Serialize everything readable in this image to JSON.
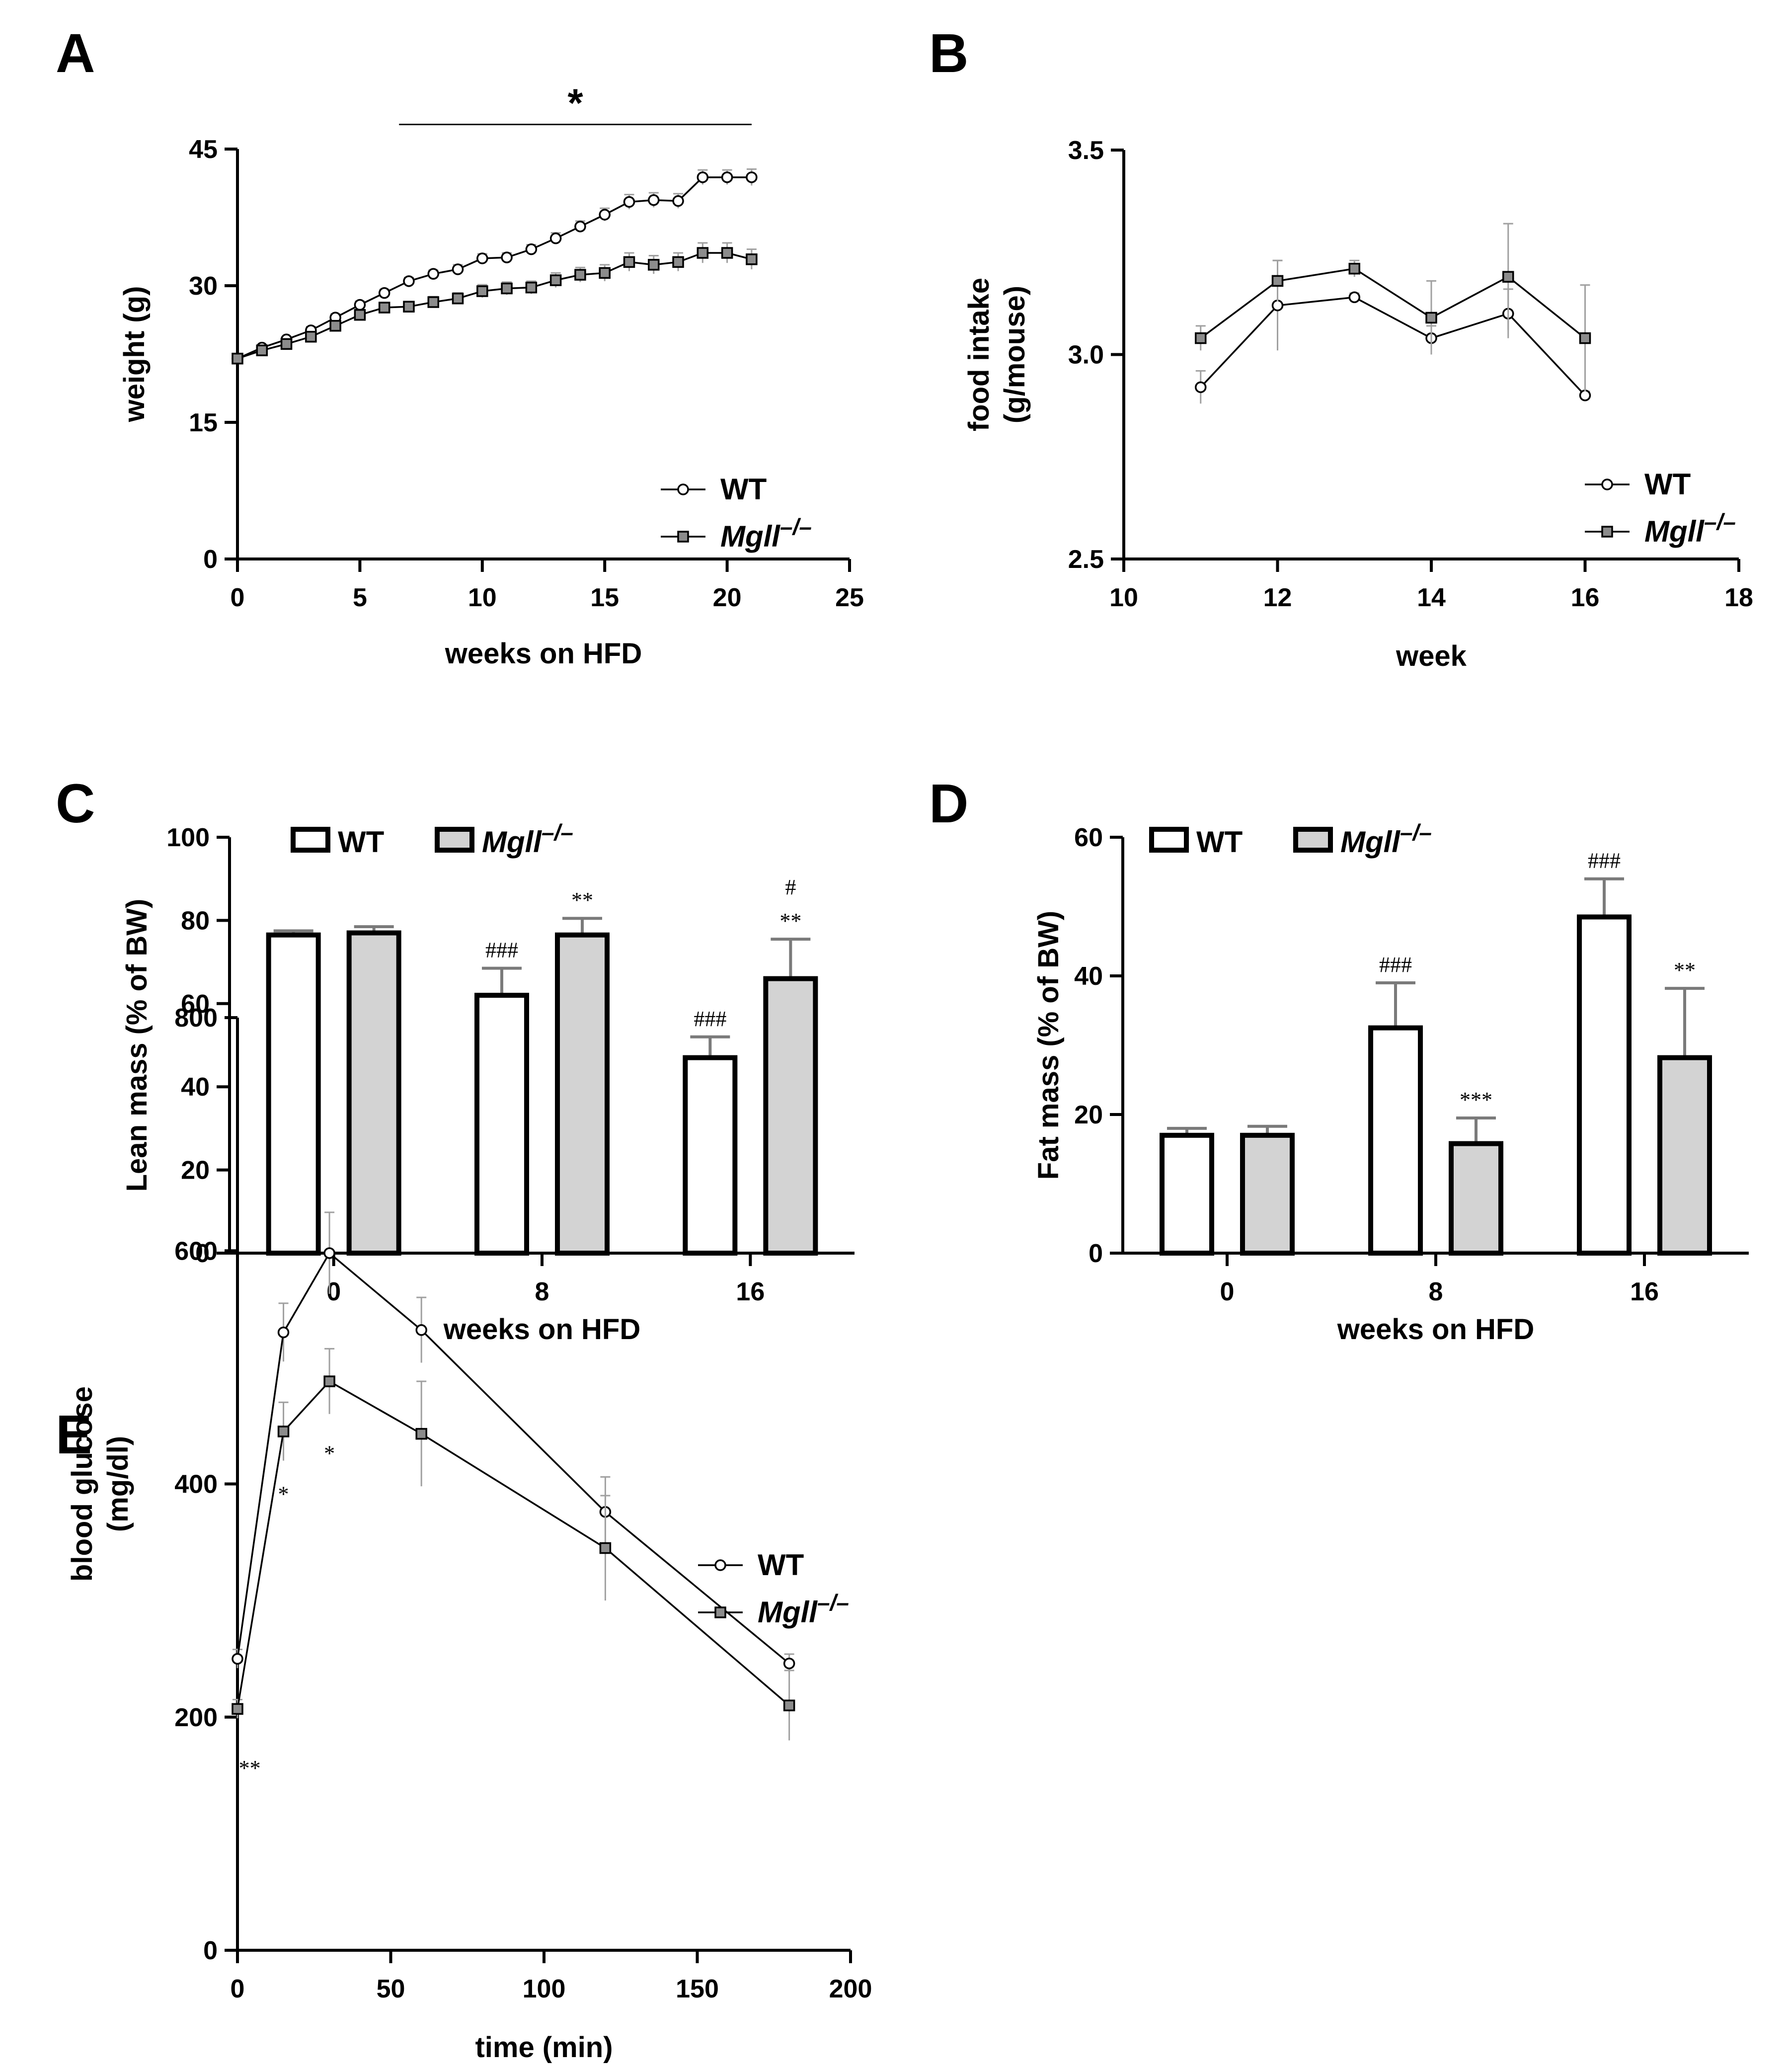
{
  "chart_data": [
    {
      "id": "A",
      "panel_label": "A",
      "type": "line",
      "xlabel": "weeks on HFD",
      "ylabel": "weight (g)",
      "xlim": [
        0,
        25
      ],
      "ylim": [
        0,
        45
      ],
      "xticks": [
        "0",
        "5",
        "10",
        "15",
        "20",
        "25"
      ],
      "yticks": [
        "0",
        "15",
        "30",
        "45"
      ],
      "x": [
        0,
        1,
        2,
        3,
        4,
        5,
        6,
        7,
        8,
        9,
        10,
        11,
        12,
        13,
        14,
        15,
        16,
        17,
        18,
        19,
        20,
        21
      ],
      "series": [
        {
          "name": "WT",
          "marker": "circle",
          "values": [
            22,
            23.2,
            24.1,
            25.1,
            26.5,
            27.9,
            29.2,
            30.5,
            31.3,
            31.8,
            33,
            33.1,
            34,
            35.2,
            36.5,
            37.8,
            39.2,
            39.4,
            39.3,
            41.9,
            41.9,
            41.9
          ],
          "err": [
            0,
            0.3,
            0.3,
            0.4,
            0.4,
            0.4,
            0.4,
            0.4,
            0.4,
            0.5,
            0.5,
            0.5,
            0.5,
            0.6,
            0.6,
            0.7,
            0.8,
            0.8,
            0.8,
            0.8,
            0.8,
            0.9
          ]
        },
        {
          "name": "Mgll⁻/⁻",
          "marker": "square",
          "values": [
            22,
            22.9,
            23.6,
            24.4,
            25.6,
            26.8,
            27.6,
            27.7,
            28.2,
            28.6,
            29.4,
            29.7,
            29.8,
            30.6,
            31.2,
            31.4,
            32.6,
            32.3,
            32.6,
            33.6,
            33.6,
            32.9
          ],
          "err": [
            0,
            0.3,
            0.3,
            0.4,
            0.4,
            0.5,
            0.5,
            0.5,
            0.6,
            0.6,
            0.7,
            0.7,
            0.7,
            0.8,
            0.8,
            0.9,
            1,
            1,
            1,
            1.1,
            1.1,
            1.1
          ]
        }
      ],
      "annotations": [
        {
          "text": "*",
          "x_from": 6.6,
          "x_to": 21,
          "y": 47.7
        }
      ],
      "legend": [
        "WT",
        "Mgll⁻/⁻"
      ],
      "legend_position": "bottom-right"
    },
    {
      "id": "B",
      "panel_label": "B",
      "type": "line",
      "xlabel": "week",
      "ylabel_lines": [
        "food intake",
        "(g/mouse)"
      ],
      "xlim": [
        10,
        18
      ],
      "ylim": [
        2.5,
        3.5
      ],
      "xticks": [
        "10",
        "12",
        "14",
        "16",
        "18"
      ],
      "yticks": [
        "2.5",
        "3.0",
        "3.5"
      ],
      "x": [
        11,
        12,
        13,
        14,
        15,
        16
      ],
      "series": [
        {
          "name": "WT",
          "marker": "circle",
          "values": [
            2.92,
            3.12,
            3.14,
            3.04,
            3.1,
            2.9
          ],
          "err": [
            0.04,
            0.11,
            0.01,
            0.03,
            0.06,
            0.01
          ]
        },
        {
          "name": "Mgll⁻/⁻",
          "marker": "square",
          "values": [
            3.04,
            3.18,
            3.21,
            3.09,
            3.19,
            3.04
          ],
          "err": [
            0.03,
            0.05,
            0.02,
            0.09,
            0.13,
            0.13
          ]
        }
      ],
      "legend": [
        "WT",
        "Mgll⁻/⁻"
      ],
      "legend_position": "bottom-right"
    },
    {
      "id": "C",
      "panel_label": "C",
      "type": "bar",
      "xlabel": "weeks on HFD",
      "ylabel": "Lean mass (% of BW)",
      "ylim": [
        0,
        100
      ],
      "yticks": [
        "0",
        "20",
        "40",
        "60",
        "80",
        "100"
      ],
      "categories": [
        "0",
        "8",
        "16"
      ],
      "series": [
        {
          "name": "WT",
          "values": [
            76.5,
            62,
            47
          ],
          "err": [
            1,
            6.5,
            5
          ],
          "annotations": [
            "",
            "###",
            "###"
          ]
        },
        {
          "name": "Mgll⁻/⁻",
          "values": [
            77,
            76.5,
            66
          ],
          "err": [
            1.5,
            4,
            9.5
          ],
          "annotations": [
            "",
            "**",
            "**"
          ],
          "annotations_top": [
            "",
            "",
            "#"
          ]
        }
      ],
      "legend": [
        "WT",
        "Mgll⁻/⁻"
      ],
      "legend_position": "top"
    },
    {
      "id": "D",
      "panel_label": "D",
      "type": "bar",
      "xlabel": "weeks on HFD",
      "ylabel": "Fat mass (% of BW)",
      "ylim": [
        0,
        60
      ],
      "yticks": [
        "0",
        "20",
        "40",
        "60"
      ],
      "categories": [
        "0",
        "8",
        "16"
      ],
      "series": [
        {
          "name": "WT",
          "values": [
            17,
            32.5,
            48.5
          ],
          "err": [
            1,
            6.5,
            5.5
          ],
          "annotations": [
            "",
            "###",
            "###"
          ]
        },
        {
          "name": "Mgll⁻/⁻",
          "values": [
            17,
            15.8,
            28.2
          ],
          "err": [
            1.3,
            3.7,
            10
          ],
          "annotations": [
            "",
            "***",
            "**"
          ]
        }
      ],
      "legend": [
        "WT",
        "Mgll⁻/⁻"
      ],
      "legend_position": "top"
    },
    {
      "id": "E",
      "panel_label": "E",
      "type": "line",
      "xlabel": "time (min)",
      "ylabel_lines": [
        "blood glucose",
        "(mg/dl)"
      ],
      "xlim": [
        0,
        200
      ],
      "ylim": [
        0,
        800
      ],
      "xticks": [
        "0",
        "50",
        "100",
        "150",
        "200"
      ],
      "yticks": [
        "0",
        "200",
        "400",
        "600",
        "800"
      ],
      "x": [
        0,
        15,
        30,
        60,
        120,
        180
      ],
      "series": [
        {
          "name": "WT",
          "marker": "circle",
          "values": [
            250,
            530,
            598,
            532,
            376,
            246
          ],
          "err": [
            8,
            25,
            35,
            28,
            30,
            8
          ]
        },
        {
          "name": "Mgll⁻/⁻",
          "marker": "square",
          "values": [
            207,
            445,
            488,
            443,
            345,
            210
          ],
          "err": [
            8,
            25,
            28,
            45,
            45,
            30
          ]
        }
      ],
      "annotations": [
        {
          "text": "**",
          "x": 4,
          "y": 150
        },
        {
          "text": "*",
          "x": 15,
          "y": 385
        },
        {
          "text": "*",
          "x": 30,
          "y": 420
        }
      ],
      "legend": [
        "WT",
        "Mgll⁻/⁻"
      ],
      "legend_position": "top-right"
    }
  ]
}
